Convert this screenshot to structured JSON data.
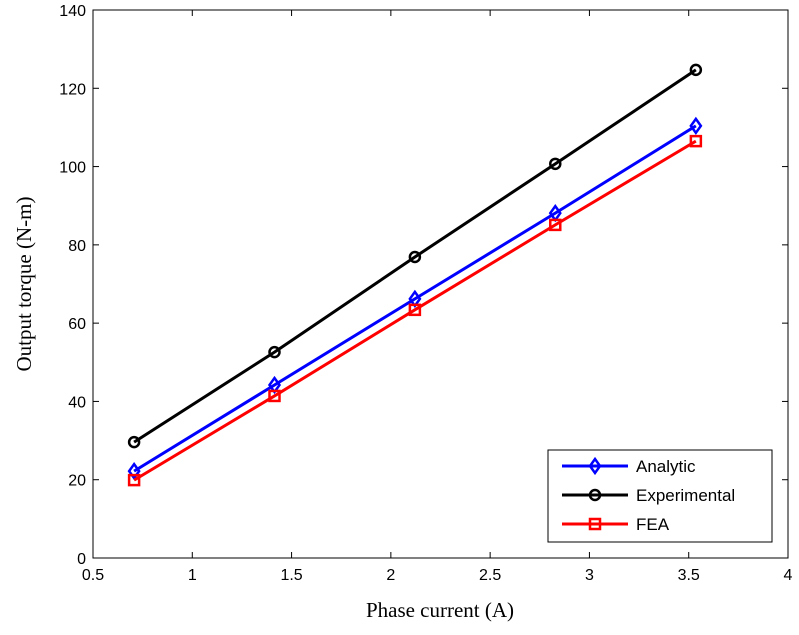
{
  "chart_data": {
    "type": "line",
    "title": "",
    "xlabel": "Phase current (A)",
    "ylabel": "Output torque (N-m)",
    "xlim": [
      0.5,
      4
    ],
    "ylim": [
      0,
      140
    ],
    "xticks": [
      0.5,
      1,
      1.5,
      2,
      2.5,
      3,
      3.5,
      4
    ],
    "xtick_labels": [
      "0.5",
      "1",
      "1.5",
      "2",
      "2.5",
      "3",
      "3.5",
      "4"
    ],
    "yticks": [
      0,
      20,
      40,
      60,
      80,
      100,
      120,
      140
    ],
    "ytick_labels": [
      "0",
      "20",
      "40",
      "60",
      "80",
      "100",
      "120",
      "140"
    ],
    "grid": false,
    "legend_position": "bottom-right",
    "x": [
      0.707,
      1.414,
      2.121,
      2.828,
      3.536
    ],
    "series": [
      {
        "name": "Analytic",
        "color": "#0000ff",
        "marker": "diamond",
        "values": [
          22.2,
          44.2,
          66.2,
          88.1,
          110.4
        ]
      },
      {
        "name": "Experimental",
        "color": "#000000",
        "marker": "circle",
        "values": [
          29.6,
          52.6,
          76.9,
          100.7,
          124.7
        ]
      },
      {
        "name": "FEA",
        "color": "#ff0000",
        "marker": "square",
        "values": [
          19.9,
          41.4,
          63.4,
          85.1,
          106.5
        ]
      }
    ]
  }
}
